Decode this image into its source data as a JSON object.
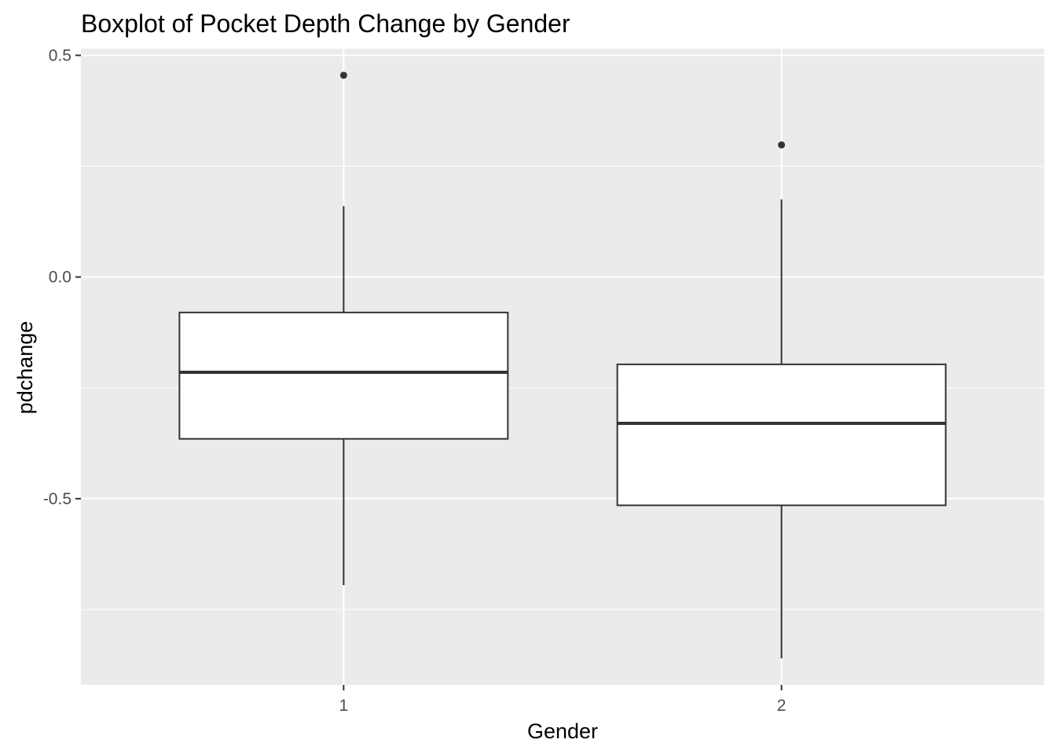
{
  "chart_data": {
    "type": "boxplot",
    "title": "Boxplot of Pocket Depth Change by Gender",
    "xlabel": "Gender",
    "ylabel": "pdchange",
    "categories": [
      "1",
      "2"
    ],
    "ylim": [
      -0.92,
      0.515
    ],
    "y_ticks": [
      -0.5,
      0.0,
      0.5
    ],
    "y_tick_labels": [
      "-0.5",
      "0.0",
      "0.5"
    ],
    "grid": true,
    "boxes": [
      {
        "category": "1",
        "lower_whisker": -0.695,
        "q1": -0.365,
        "median": -0.215,
        "q3": -0.08,
        "upper_whisker": 0.16,
        "outliers": [
          0.455
        ]
      },
      {
        "category": "2",
        "lower_whisker": -0.86,
        "q1": -0.515,
        "median": -0.33,
        "q3": -0.197,
        "upper_whisker": 0.175,
        "outliers": [
          0.298
        ]
      }
    ],
    "colors": {
      "panel_background": "#ebebeb",
      "grid": "#ffffff",
      "box_fill": "#ffffff",
      "box_line": "#333333",
      "tick_text": "#4d4d4d"
    }
  }
}
